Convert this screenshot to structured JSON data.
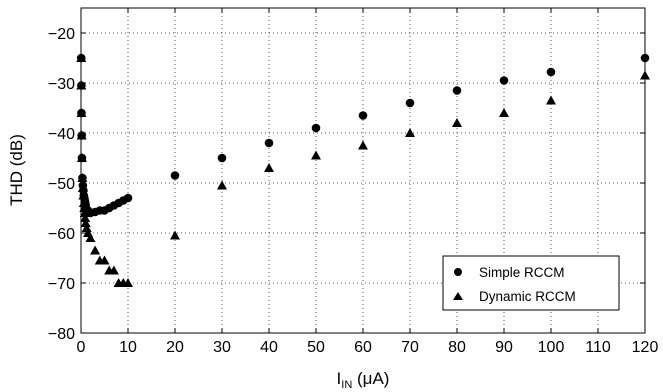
{
  "chart_data": {
    "type": "scatter",
    "xlabel": {
      "main": "I",
      "sub": "IN",
      "unit": " (μA)"
    },
    "ylabel": "THD (dB)",
    "xlim": [
      0,
      120
    ],
    "ylim": [
      -80,
      -15
    ],
    "xticks": [
      0,
      10,
      20,
      30,
      40,
      50,
      60,
      70,
      80,
      90,
      100,
      110,
      120
    ],
    "yticks": [
      -80,
      -70,
      -60,
      -50,
      -40,
      -30,
      -20
    ],
    "xtick_labels": [
      "0",
      "10",
      "20",
      "30",
      "40",
      "50",
      "60",
      "70",
      "80",
      "90",
      "100",
      "110",
      "120"
    ],
    "ytick_labels": [
      "−80",
      "−70",
      "−60",
      "−50",
      "−40",
      "−30",
      "−20"
    ],
    "grid": "dotted",
    "legend_position": "bottom-right",
    "series": [
      {
        "name": "Simple RCCM",
        "marker": "circle",
        "color": "#000000",
        "x": [
          0.05,
          0.08,
          0.1,
          0.15,
          0.2,
          0.3,
          0.4,
          0.5,
          0.6,
          0.7,
          0.8,
          0.9,
          1,
          1.5,
          2,
          3,
          4,
          5,
          6,
          7,
          8,
          9,
          10,
          20,
          30,
          40,
          50,
          60,
          70,
          80,
          90,
          100,
          120
        ],
        "y": [
          -25,
          -30.5,
          -36,
          -40.5,
          -45,
          -49,
          -50.5,
          -51.5,
          -52.5,
          -53,
          -53.5,
          -54,
          -54.5,
          -55.5,
          -56,
          -55.8,
          -55.5,
          -55.5,
          -55,
          -54.5,
          -54,
          -53.5,
          -53,
          -48.5,
          -45,
          -42,
          -39,
          -36.5,
          -34,
          -31.5,
          -29.5,
          -27.8,
          -25
        ]
      },
      {
        "name": "Dynamic RCCM",
        "marker": "triangle",
        "color": "#000000",
        "x": [
          0.05,
          0.08,
          0.1,
          0.15,
          0.2,
          0.3,
          0.4,
          0.5,
          0.6,
          0.7,
          0.8,
          0.9,
          1,
          1.2,
          1.5,
          2,
          3,
          4,
          5,
          6,
          7,
          8,
          9,
          10,
          20,
          30,
          40,
          50,
          60,
          70,
          80,
          90,
          100,
          120
        ],
        "y": [
          -25,
          -30.5,
          -36,
          -40.5,
          -45,
          -49,
          -51,
          -52.5,
          -54,
          -55,
          -56,
          -57,
          -58,
          -59,
          -60,
          -61,
          -63.5,
          -65.5,
          -65.5,
          -67.5,
          -67.5,
          -70,
          -70,
          -70,
          -60.5,
          -50.5,
          -47,
          -44.5,
          -42.5,
          -40,
          -38,
          -36,
          -33.5,
          -28.5
        ]
      }
    ]
  }
}
